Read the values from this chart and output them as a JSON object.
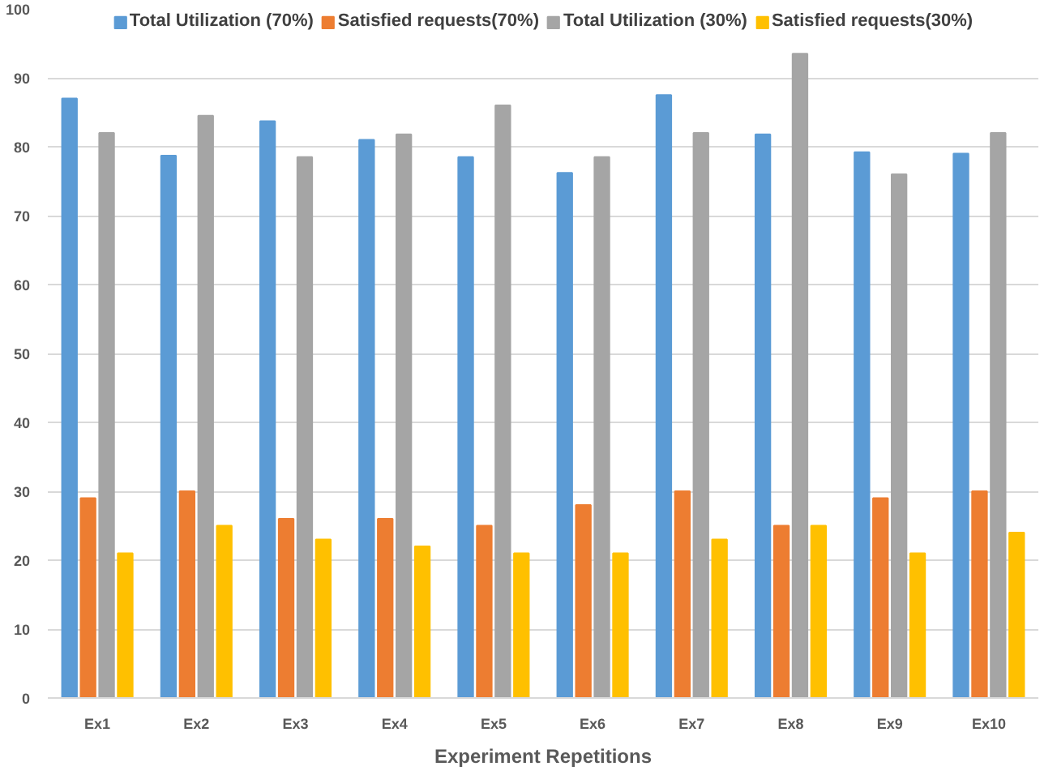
{
  "chart_data": {
    "type": "bar",
    "xlabel": "Experiment Repetitions",
    "categories": [
      "Ex1",
      "Ex2",
      "Ex3",
      "Ex4",
      "Ex5",
      "Ex6",
      "Ex7",
      "Ex8",
      "Ex9",
      "Ex10"
    ],
    "series": [
      {
        "name": "Total Utilization (70%)",
        "color": "#5b9bd5",
        "values": [
          87,
          78.7,
          83.7,
          81,
          78.5,
          76.2,
          87.5,
          81.8,
          79.2,
          79
        ]
      },
      {
        "name": "Satisfied requests(70%)",
        "color": "#ed7d31",
        "values": [
          29,
          30,
          26,
          26,
          25,
          28,
          30,
          25,
          29,
          30
        ]
      },
      {
        "name": "Total Utilization (30%)",
        "color": "#a5a5a5",
        "values": [
          82,
          84.5,
          78.5,
          81.8,
          86,
          78.5,
          82,
          93.5,
          76,
          82
        ]
      },
      {
        "name": "Satisfied requests(30%)",
        "color": "#ffc000",
        "values": [
          21,
          25,
          23,
          22,
          21,
          21,
          23,
          25,
          21,
          24
        ]
      }
    ],
    "ylim": [
      0,
      100
    ],
    "yticks": [
      0,
      10,
      20,
      30,
      40,
      50,
      60,
      70,
      80,
      90,
      100
    ],
    "grid": "y",
    "legend": "top"
  }
}
